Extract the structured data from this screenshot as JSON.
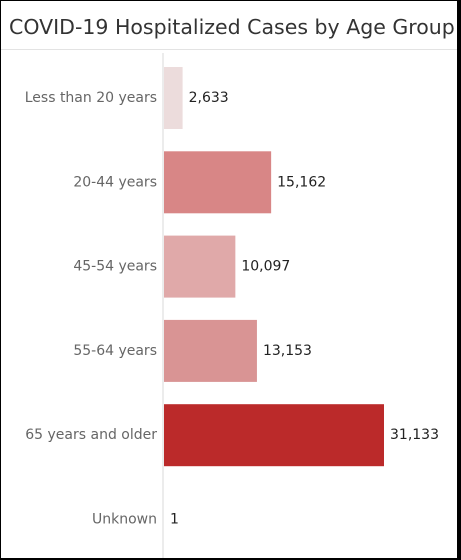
{
  "chart_data": {
    "type": "bar",
    "orientation": "horizontal",
    "title": "COVID-19 Hospitalized Cases by Age Group",
    "categories": [
      "Less than 20 years",
      "20-44 years",
      "45-54 years",
      "55-64 years",
      "65 years and older",
      "Unknown"
    ],
    "values": [
      2633,
      15162,
      10097,
      13153,
      31133,
      1
    ],
    "value_labels": [
      "2,633",
      "15,162",
      "10,097",
      "13,153",
      "31,133",
      "1"
    ],
    "colors": [
      "#ecdcdc",
      "#d88686",
      "#e0a9a9",
      "#d99494",
      "#bb2a2a",
      "#ecdcdc"
    ],
    "xlim": [
      0,
      31133
    ],
    "grid": false,
    "legend": "none"
  }
}
